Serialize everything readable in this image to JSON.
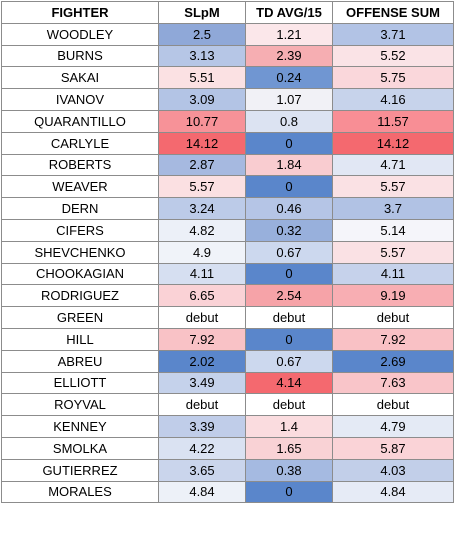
{
  "headers": [
    "FIGHTER",
    "SLpM",
    "TD AVG/15",
    "OFFENSE SUM"
  ],
  "rows": [
    {
      "fighter": "WOODLEY",
      "slpm": "2.5",
      "td": "1.21",
      "sum": "3.71",
      "slpm_color": "#8fa8d8",
      "td_color": "#fbe7ea",
      "sum_color": "#b2c3e5"
    },
    {
      "fighter": "BURNS",
      "slpm": "3.13",
      "td": "2.39",
      "sum": "5.52",
      "slpm_color": "#b6c6e6",
      "td_color": "#f6aeb2",
      "sum_color": "#fae3e6"
    },
    {
      "fighter": "SAKAI",
      "slpm": "5.51",
      "td": "0.24",
      "sum": "5.75",
      "slpm_color": "#fbe1e3",
      "td_color": "#7096d2",
      "sum_color": "#fad7db"
    },
    {
      "fighter": "IVANOV",
      "slpm": "3.09",
      "td": "1.07",
      "sum": "4.16",
      "slpm_color": "#b3c4e5",
      "td_color": "#f1f1f6",
      "sum_color": "#c7d3eb"
    },
    {
      "fighter": "QUARANTILLO",
      "slpm": "10.77",
      "td": "0.8",
      "sum": "11.57",
      "slpm_color": "#f79298",
      "td_color": "#dce3f2",
      "sum_color": "#f88e95"
    },
    {
      "fighter": "CARLYLE",
      "slpm": "14.12",
      "td": "0",
      "sum": "14.12",
      "slpm_color": "#f4696f",
      "td_color": "#5a86cb",
      "sum_color": "#f4696f"
    },
    {
      "fighter": "ROBERTS",
      "slpm": "2.87",
      "td": "1.84",
      "sum": "4.71",
      "slpm_color": "#a6b9e0",
      "td_color": "#f9ccd0",
      "sum_color": "#e1e7f4"
    },
    {
      "fighter": "WEAVER",
      "slpm": "5.57",
      "td": "0",
      "sum": "5.57",
      "slpm_color": "#fbe0e2",
      "td_color": "#5a86cb",
      "sum_color": "#fae1e4"
    },
    {
      "fighter": "DERN",
      "slpm": "3.24",
      "td": "0.46",
      "sum": "3.7",
      "slpm_color": "#bccbe8",
      "td_color": "#b5c5e6",
      "sum_color": "#b1c2e4"
    },
    {
      "fighter": "CIFERS",
      "slpm": "4.82",
      "td": "0.32",
      "sum": "5.14",
      "slpm_color": "#ecf0f8",
      "td_color": "#98b0dc",
      "sum_color": "#f5f5fa"
    },
    {
      "fighter": "SHEVCHENKO",
      "slpm": "4.9",
      "td": "0.67",
      "sum": "5.57",
      "slpm_color": "#f0f3f9",
      "td_color": "#ccd8ee",
      "sum_color": "#fae1e4"
    },
    {
      "fighter": "CHOOKAGIAN",
      "slpm": "4.11",
      "td": "0",
      "sum": "4.11",
      "slpm_color": "#d6dff1",
      "td_color": "#5a86cb",
      "sum_color": "#c6d2eb"
    },
    {
      "fighter": "RODRIGUEZ",
      "slpm": "6.65",
      "td": "2.54",
      "sum": "9.19",
      "slpm_color": "#fad2d6",
      "td_color": "#f6a3a8",
      "sum_color": "#f8aeb3"
    },
    {
      "fighter": "GREEN",
      "slpm": "debut",
      "td": "debut",
      "sum": "debut",
      "slpm_color": "#ffffff",
      "td_color": "#ffffff",
      "sum_color": "#ffffff"
    },
    {
      "fighter": "HILL",
      "slpm": "7.92",
      "td": "0",
      "sum": "7.92",
      "slpm_color": "#f9c2c6",
      "td_color": "#5a86cb",
      "sum_color": "#f9c1c5"
    },
    {
      "fighter": "ABREU",
      "slpm": "2.02",
      "td": "0.67",
      "sum": "2.69",
      "slpm_color": "#5a86cb",
      "td_color": "#ccd8ee",
      "sum_color": "#5a86cb"
    },
    {
      "fighter": "ELLIOTT",
      "slpm": "3.49",
      "td": "4.14",
      "sum": "7.63",
      "slpm_color": "#c5d2eb",
      "td_color": "#f4696f",
      "sum_color": "#f9c5c9"
    },
    {
      "fighter": "ROYVAL",
      "slpm": "debut",
      "td": "debut",
      "sum": "debut",
      "slpm_color": "#ffffff",
      "td_color": "#ffffff",
      "sum_color": "#ffffff"
    },
    {
      "fighter": "KENNEY",
      "slpm": "3.39",
      "td": "1.4",
      "sum": "4.79",
      "slpm_color": "#c0cde9",
      "td_color": "#fadcdf",
      "sum_color": "#e4eaf5"
    },
    {
      "fighter": "SMOLKA",
      "slpm": "4.22",
      "td": "1.65",
      "sum": "5.87",
      "slpm_color": "#dae2f2",
      "td_color": "#f9d2d5",
      "sum_color": "#fad3d7"
    },
    {
      "fighter": "GUTIERREZ",
      "slpm": "3.65",
      "td": "0.38",
      "sum": "4.03",
      "slpm_color": "#cad5ec",
      "td_color": "#a5bae1",
      "sum_color": "#c2cfe9"
    },
    {
      "fighter": "MORALES",
      "slpm": "4.84",
      "td": "0",
      "sum": "4.84",
      "slpm_color": "#edf1f8",
      "td_color": "#5a86cb",
      "sum_color": "#e6ebf6"
    }
  ]
}
